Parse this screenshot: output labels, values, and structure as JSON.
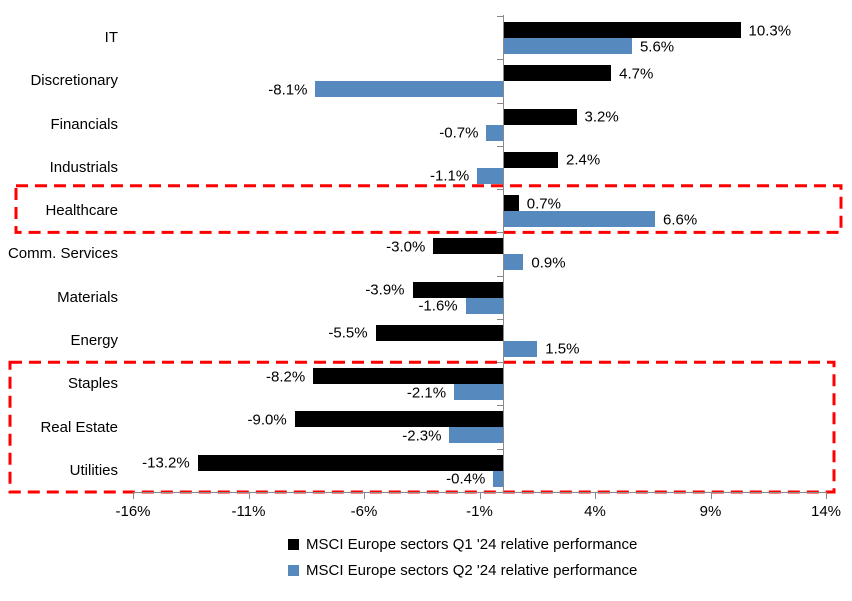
{
  "chart_data": {
    "type": "bar",
    "orientation": "horizontal",
    "title": "",
    "categories": [
      "IT",
      "Discretionary",
      "Financials",
      "Industrials",
      "Healthcare",
      "Comm. Services",
      "Materials",
      "Energy",
      "Staples",
      "Real Estate",
      "Utilities"
    ],
    "series": [
      {
        "name": "MSCI Europe sectors Q1 '24 relative performance",
        "color": "#000000",
        "values": [
          10.3,
          4.7,
          3.2,
          2.4,
          0.7,
          -3.0,
          -3.9,
          -5.5,
          -8.2,
          -9.0,
          -13.2
        ]
      },
      {
        "name": "MSCI Europe sectors Q2 '24 relative performance",
        "color": "#5689BE",
        "values": [
          5.6,
          -8.1,
          -0.7,
          -1.1,
          6.6,
          0.9,
          -1.6,
          1.5,
          -2.1,
          -2.3,
          -0.4
        ]
      }
    ],
    "x_tick_labels": [
      "-16%",
      "-11%",
      "-6%",
      "-1%",
      "4%",
      "9%",
      "14%"
    ],
    "x_tick_values": [
      -16,
      -11,
      -6,
      -1,
      4,
      9,
      14
    ],
    "xlim": [
      -16,
      14
    ],
    "data_label_format": "0.0%",
    "grid": false,
    "legend_position": "bottom",
    "axis_color": "#898989",
    "highlight_boxes": [
      {
        "rows_from": "Healthcare",
        "rows_to": "Healthcare",
        "row_start": 4,
        "row_end": 4,
        "color": "#FF0000",
        "style": "dashed"
      },
      {
        "rows_from": "Staples",
        "rows_to": "Utilities",
        "row_start": 8,
        "row_end": 10,
        "color": "#FF0000",
        "style": "dashed"
      }
    ]
  }
}
